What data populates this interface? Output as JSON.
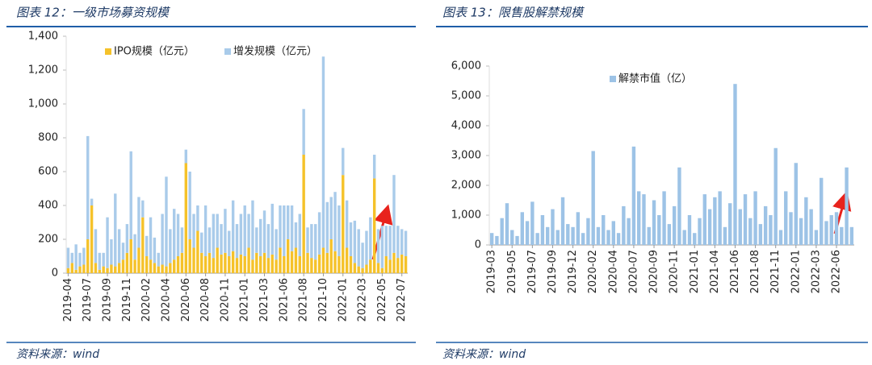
{
  "chart_data": [
    {
      "type": "stacked_bar",
      "title": "图表 12：一级市场募资规模",
      "source": "资料来源：wind",
      "categories": [
        "2019-04",
        null,
        null,
        null,
        null,
        "2019-07",
        null,
        null,
        null,
        null,
        "2019-09",
        null,
        null,
        null,
        null,
        "2019-11",
        null,
        null,
        null,
        null,
        "2020-02",
        null,
        null,
        null,
        null,
        "2020-04",
        null,
        null,
        null,
        null,
        "2020-06",
        null,
        null,
        null,
        null,
        "2020-08",
        null,
        null,
        null,
        null,
        "2020-11",
        null,
        null,
        null,
        null,
        "2021-01",
        null,
        null,
        null,
        null,
        "2021-03",
        null,
        null,
        null,
        null,
        "2021-06",
        null,
        null,
        null,
        null,
        "2021-08",
        null,
        null,
        null,
        null,
        "2021-10",
        null,
        null,
        null,
        null,
        "2022-01",
        null,
        null,
        null,
        null,
        "2022-03",
        null,
        null,
        null,
        null,
        "2022-05",
        null,
        null,
        null,
        null,
        "2022-07",
        null
      ],
      "series": [
        {
          "name": "IPO规模（亿元）",
          "color": "#f5c22a",
          "values": [
            30,
            60,
            20,
            40,
            50,
            200,
            400,
            60,
            20,
            40,
            30,
            50,
            40,
            60,
            80,
            120,
            200,
            80,
            150,
            330,
            100,
            80,
            60,
            40,
            50,
            40,
            60,
            80,
            100,
            120,
            650,
            200,
            150,
            250,
            120,
            100,
            120,
            90,
            150,
            110,
            120,
            100,
            130,
            90,
            110,
            100,
            150,
            80,
            120,
            100,
            120,
            90,
            110,
            80,
            150,
            100,
            200,
            130,
            150,
            100,
            700,
            120,
            90,
            80,
            110,
            150,
            120,
            200,
            130,
            100,
            580,
            150,
            100,
            60,
            40,
            30,
            50,
            80,
            560,
            60,
            30,
            100,
            80,
            120,
            90,
            110,
            100
          ]
        },
        {
          "name": "增发规模（亿元）",
          "color": "#a9cbea",
          "values": [
            120,
            60,
            150,
            80,
            100,
            610,
            40,
            200,
            100,
            80,
            300,
            150,
            430,
            200,
            100,
            170,
            520,
            150,
            300,
            100,
            120,
            250,
            150,
            80,
            300,
            530,
            200,
            300,
            250,
            150,
            80,
            400,
            200,
            150,
            120,
            300,
            150,
            260,
            200,
            180,
            260,
            150,
            300,
            200,
            240,
            300,
            200,
            350,
            150,
            220,
            250,
            200,
            300,
            180,
            250,
            300,
            200,
            270,
            150,
            250,
            270,
            150,
            200,
            210,
            250,
            1130,
            300,
            250,
            350,
            300,
            160,
            280,
            200,
            250,
            220,
            150,
            200,
            250,
            140,
            200,
            250,
            180,
            200,
            460,
            190,
            150,
            150
          ]
        }
      ],
      "ylim": [
        0,
        1400
      ],
      "yticks": [
        0,
        200,
        400,
        600,
        800,
        {
          "value": 1000,
          "label": "1,000"
        },
        {
          "value": 1200,
          "label": "1,200"
        },
        {
          "value": 1400,
          "label": "1,400"
        }
      ],
      "legend": "top"
    },
    {
      "type": "stacked_bar",
      "title": "图表 13：限售股解禁规模",
      "source": "资料来源：wind",
      "categories": [
        "2019-03",
        null,
        null,
        null,
        "2019-05",
        null,
        null,
        null,
        "2019-07",
        null,
        null,
        null,
        "2019-09",
        null,
        null,
        null,
        "2019-12",
        null,
        null,
        null,
        "2020-02",
        null,
        null,
        null,
        "2020-04",
        null,
        null,
        null,
        "2020-07",
        null,
        null,
        null,
        "2020-09",
        null,
        null,
        null,
        "2020-11",
        null,
        null,
        null,
        "2021-01",
        null,
        null,
        null,
        "2021-04",
        null,
        null,
        null,
        "2021-06",
        null,
        null,
        null,
        "2021-08",
        null,
        null,
        null,
        "2021-11",
        null,
        null,
        null,
        "2022-01",
        null,
        null,
        null,
        "2022-03",
        null,
        null,
        null,
        "2022-06",
        null,
        null,
        null
      ],
      "series": [
        {
          "name": "解禁市值（亿）",
          "color": "#9dc3e6",
          "values": [
            400,
            300,
            900,
            1400,
            500,
            300,
            1100,
            800,
            1450,
            400,
            1000,
            600,
            1200,
            500,
            1600,
            700,
            600,
            1100,
            400,
            900,
            3150,
            600,
            1000,
            500,
            800,
            400,
            1300,
            900,
            3300,
            1800,
            1700,
            600,
            1500,
            1000,
            1800,
            700,
            1300,
            2600,
            500,
            1000,
            400,
            900,
            1700,
            1200,
            1600,
            1800,
            600,
            1400,
            5400,
            1200,
            1700,
            900,
            1800,
            700,
            1300,
            1000,
            3250,
            500,
            1800,
            1100,
            2750,
            900,
            1600,
            1200,
            500,
            2250,
            800,
            1000,
            1100,
            600,
            2600,
            600
          ]
        }
      ],
      "ylim": [
        0,
        6000
      ],
      "yticks": [
        0,
        {
          "value": 1000,
          "label": "1,000"
        },
        {
          "value": 2000,
          "label": "2,000"
        },
        {
          "value": 3000,
          "label": "3,000"
        },
        {
          "value": 4000,
          "label": "4,000"
        },
        {
          "value": 5000,
          "label": "5,000"
        },
        {
          "value": 6000,
          "label": "6,000"
        }
      ],
      "legend": "top"
    }
  ]
}
